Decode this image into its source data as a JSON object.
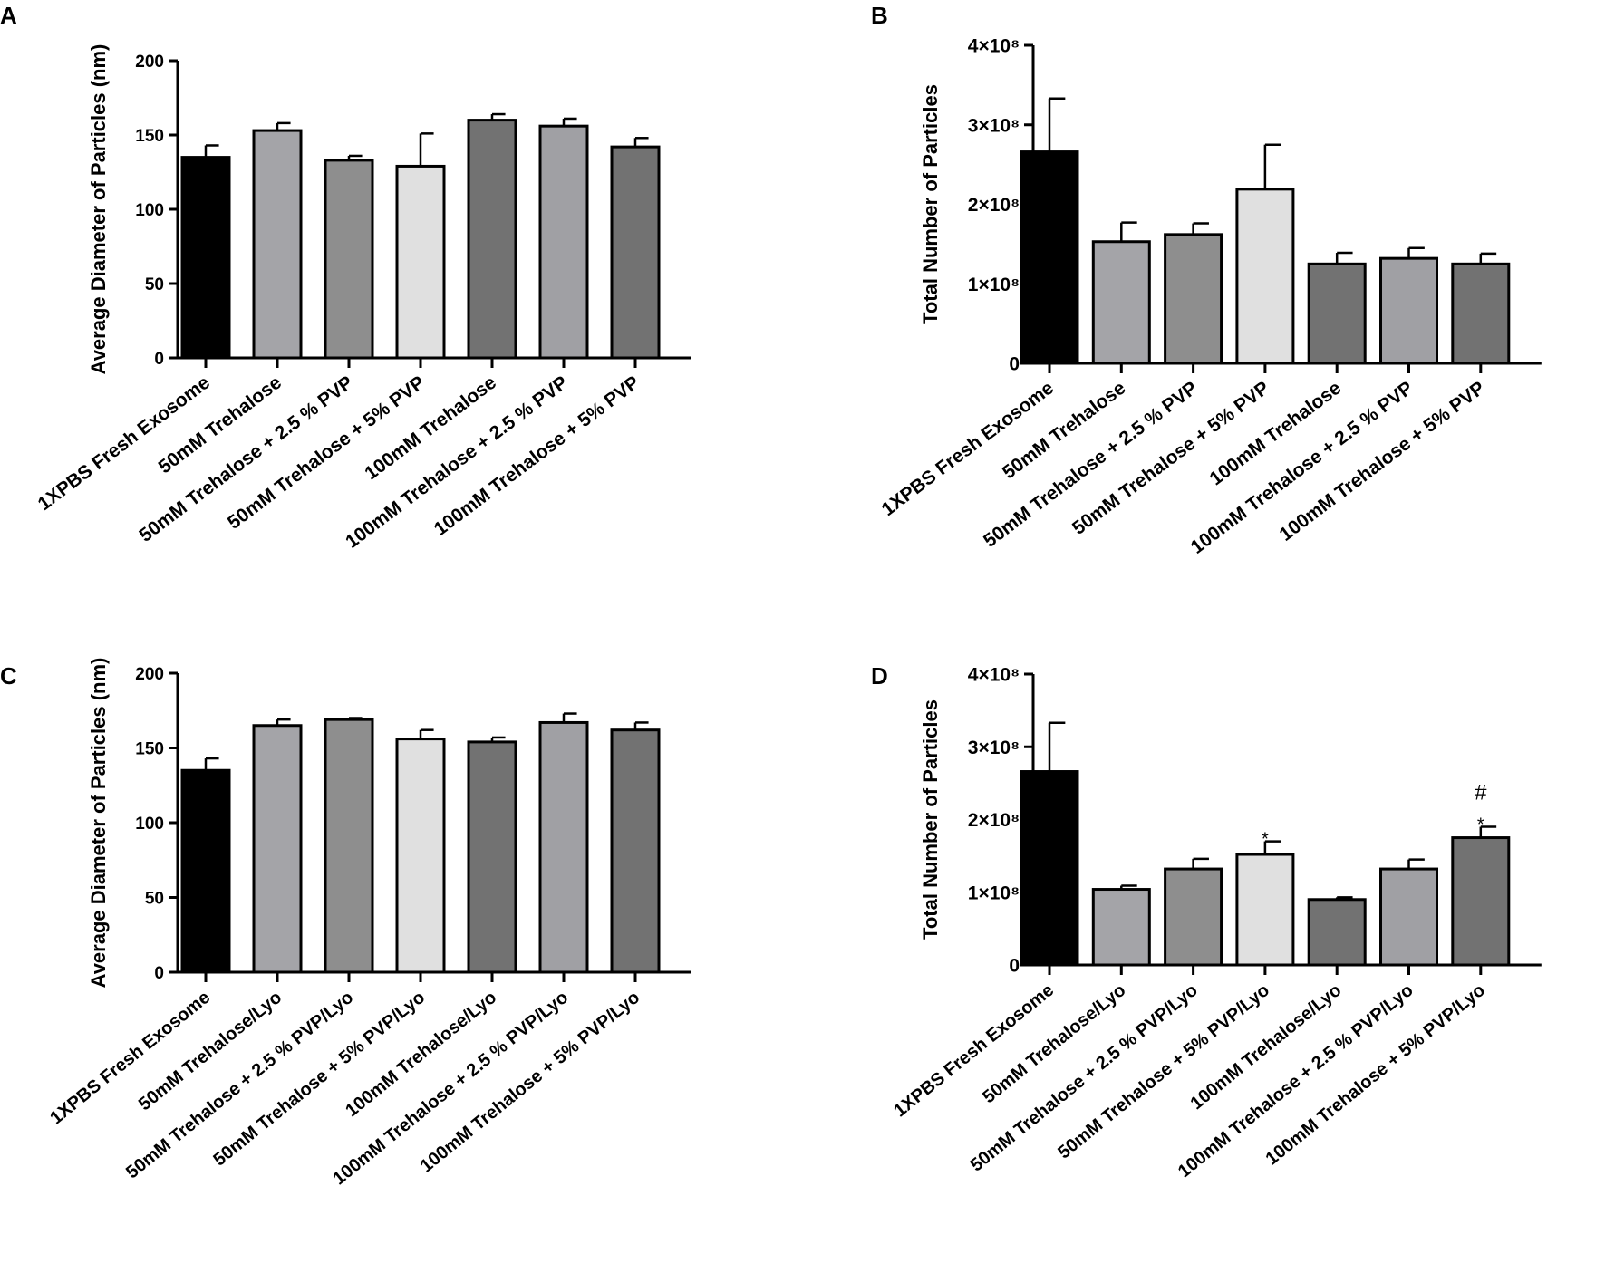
{
  "chart_data": [
    {
      "panel": "A",
      "type": "bar",
      "title": "",
      "xlabel": "",
      "ylabel": "Average Diameter of  Particles (nm)",
      "ylim": [
        0,
        200
      ],
      "yticks": [
        0,
        50,
        100,
        150,
        200
      ],
      "ytick_labels": [
        "0",
        "50",
        "100",
        "150",
        "200"
      ],
      "categories": [
        "1XPBS Fresh Exosome",
        "50mM Trehalose",
        "50mM Trehalose + 2.5 % PVP",
        "50mM Trehalose + 5% PVP",
        "100mM Trehalose",
        "100mM Trehalose + 2.5 % PVP",
        "100mM Trehalose + 5% PVP"
      ],
      "values": [
        135,
        153,
        133,
        129,
        160,
        156,
        142
      ],
      "errors": [
        8,
        5,
        3,
        22,
        4,
        5,
        6
      ],
      "colors": [
        "#000000",
        "#a4a4a8",
        "#8e8e8e",
        "#e0e0e0",
        "#727272",
        "#a0a0a4",
        "#727272"
      ],
      "annotations": []
    },
    {
      "panel": "B",
      "type": "bar",
      "title": "",
      "xlabel": "",
      "ylabel": "Total Number of  Particles",
      "ylim": [
        0,
        4
      ],
      "yticks": [
        0,
        1,
        2,
        3,
        4
      ],
      "ytick_labels": [
        "0",
        "1×10⁸",
        "2×10⁸",
        "3×10⁸",
        "4×10⁸"
      ],
      "categories": [
        "1XPBS Fresh Exosome",
        "50mM Trehalose",
        "50mM Trehalose + 2.5 % PVP",
        "50mM Trehalose + 5% PVP",
        "100mM Trehalose",
        "100mM Trehalose + 2.5 % PVP",
        "100mM Trehalose + 5% PVP"
      ],
      "values": [
        2.66,
        1.53,
        1.62,
        2.19,
        1.25,
        1.32,
        1.25
      ],
      "errors": [
        0.67,
        0.24,
        0.14,
        0.56,
        0.14,
        0.13,
        0.13
      ],
      "colors": [
        "#000000",
        "#a4a4a8",
        "#8e8e8e",
        "#e0e0e0",
        "#727272",
        "#a0a0a4",
        "#727272"
      ],
      "annotations": []
    },
    {
      "panel": "C",
      "type": "bar",
      "title": "",
      "xlabel": "",
      "ylabel": "Average Diameter of  Particles (nm)",
      "ylim": [
        0,
        200
      ],
      "yticks": [
        0,
        50,
        100,
        150,
        200
      ],
      "ytick_labels": [
        "0",
        "50",
        "100",
        "150",
        "200"
      ],
      "categories": [
        "1XPBS Fresh Exosome",
        "50mM Trehalose/Lyo",
        "50mM Trehalose + 2.5 % PVP/Lyo",
        "50mM Trehalose + 5% PVP/Lyo",
        "100mM Trehalose/Lyo",
        "100mM Trehalose + 2.5 % PVP/Lyo",
        "100mM Trehalose + 5% PVP/Lyo"
      ],
      "values": [
        135,
        165,
        169,
        156,
        154,
        167,
        162
      ],
      "errors": [
        8,
        4,
        1,
        6,
        3,
        6,
        5
      ],
      "colors": [
        "#000000",
        "#a4a4a8",
        "#8e8e8e",
        "#e0e0e0",
        "#727272",
        "#a0a0a4",
        "#727272"
      ],
      "annotations": []
    },
    {
      "panel": "D",
      "type": "bar",
      "title": "",
      "xlabel": "",
      "ylabel": "Total Number of  Particles",
      "ylim": [
        0,
        4
      ],
      "yticks": [
        0,
        1,
        2,
        3,
        4
      ],
      "ytick_labels": [
        "0",
        "1×10⁸",
        "2×10⁸",
        "3×10⁸",
        "4×10⁸"
      ],
      "categories": [
        "1XPBS Fresh Exosome",
        "50mM Trehalose/Lyo",
        "50mM Trehalose + 2.5 % PVP/Lyo",
        "50mM Trehalose + 5% PVP/Lyo",
        "100mM Trehalose/Lyo",
        "100mM Trehalose + 2.5 % PVP/Lyo",
        "100mM Trehalose + 5% PVP/Lyo"
      ],
      "values": [
        2.66,
        1.04,
        1.32,
        1.52,
        0.9,
        1.32,
        1.75
      ],
      "errors": [
        0.67,
        0.05,
        0.14,
        0.18,
        0.03,
        0.13,
        0.15
      ],
      "colors": [
        "#000000",
        "#a4a4a8",
        "#8e8e8e",
        "#e0e0e0",
        "#727272",
        "#a0a0a4",
        "#727272"
      ],
      "annotations": [
        {
          "bar": 3,
          "text": "*"
        },
        {
          "bar": 6,
          "text": "*"
        },
        {
          "bar": 6,
          "text": "#"
        }
      ]
    }
  ]
}
